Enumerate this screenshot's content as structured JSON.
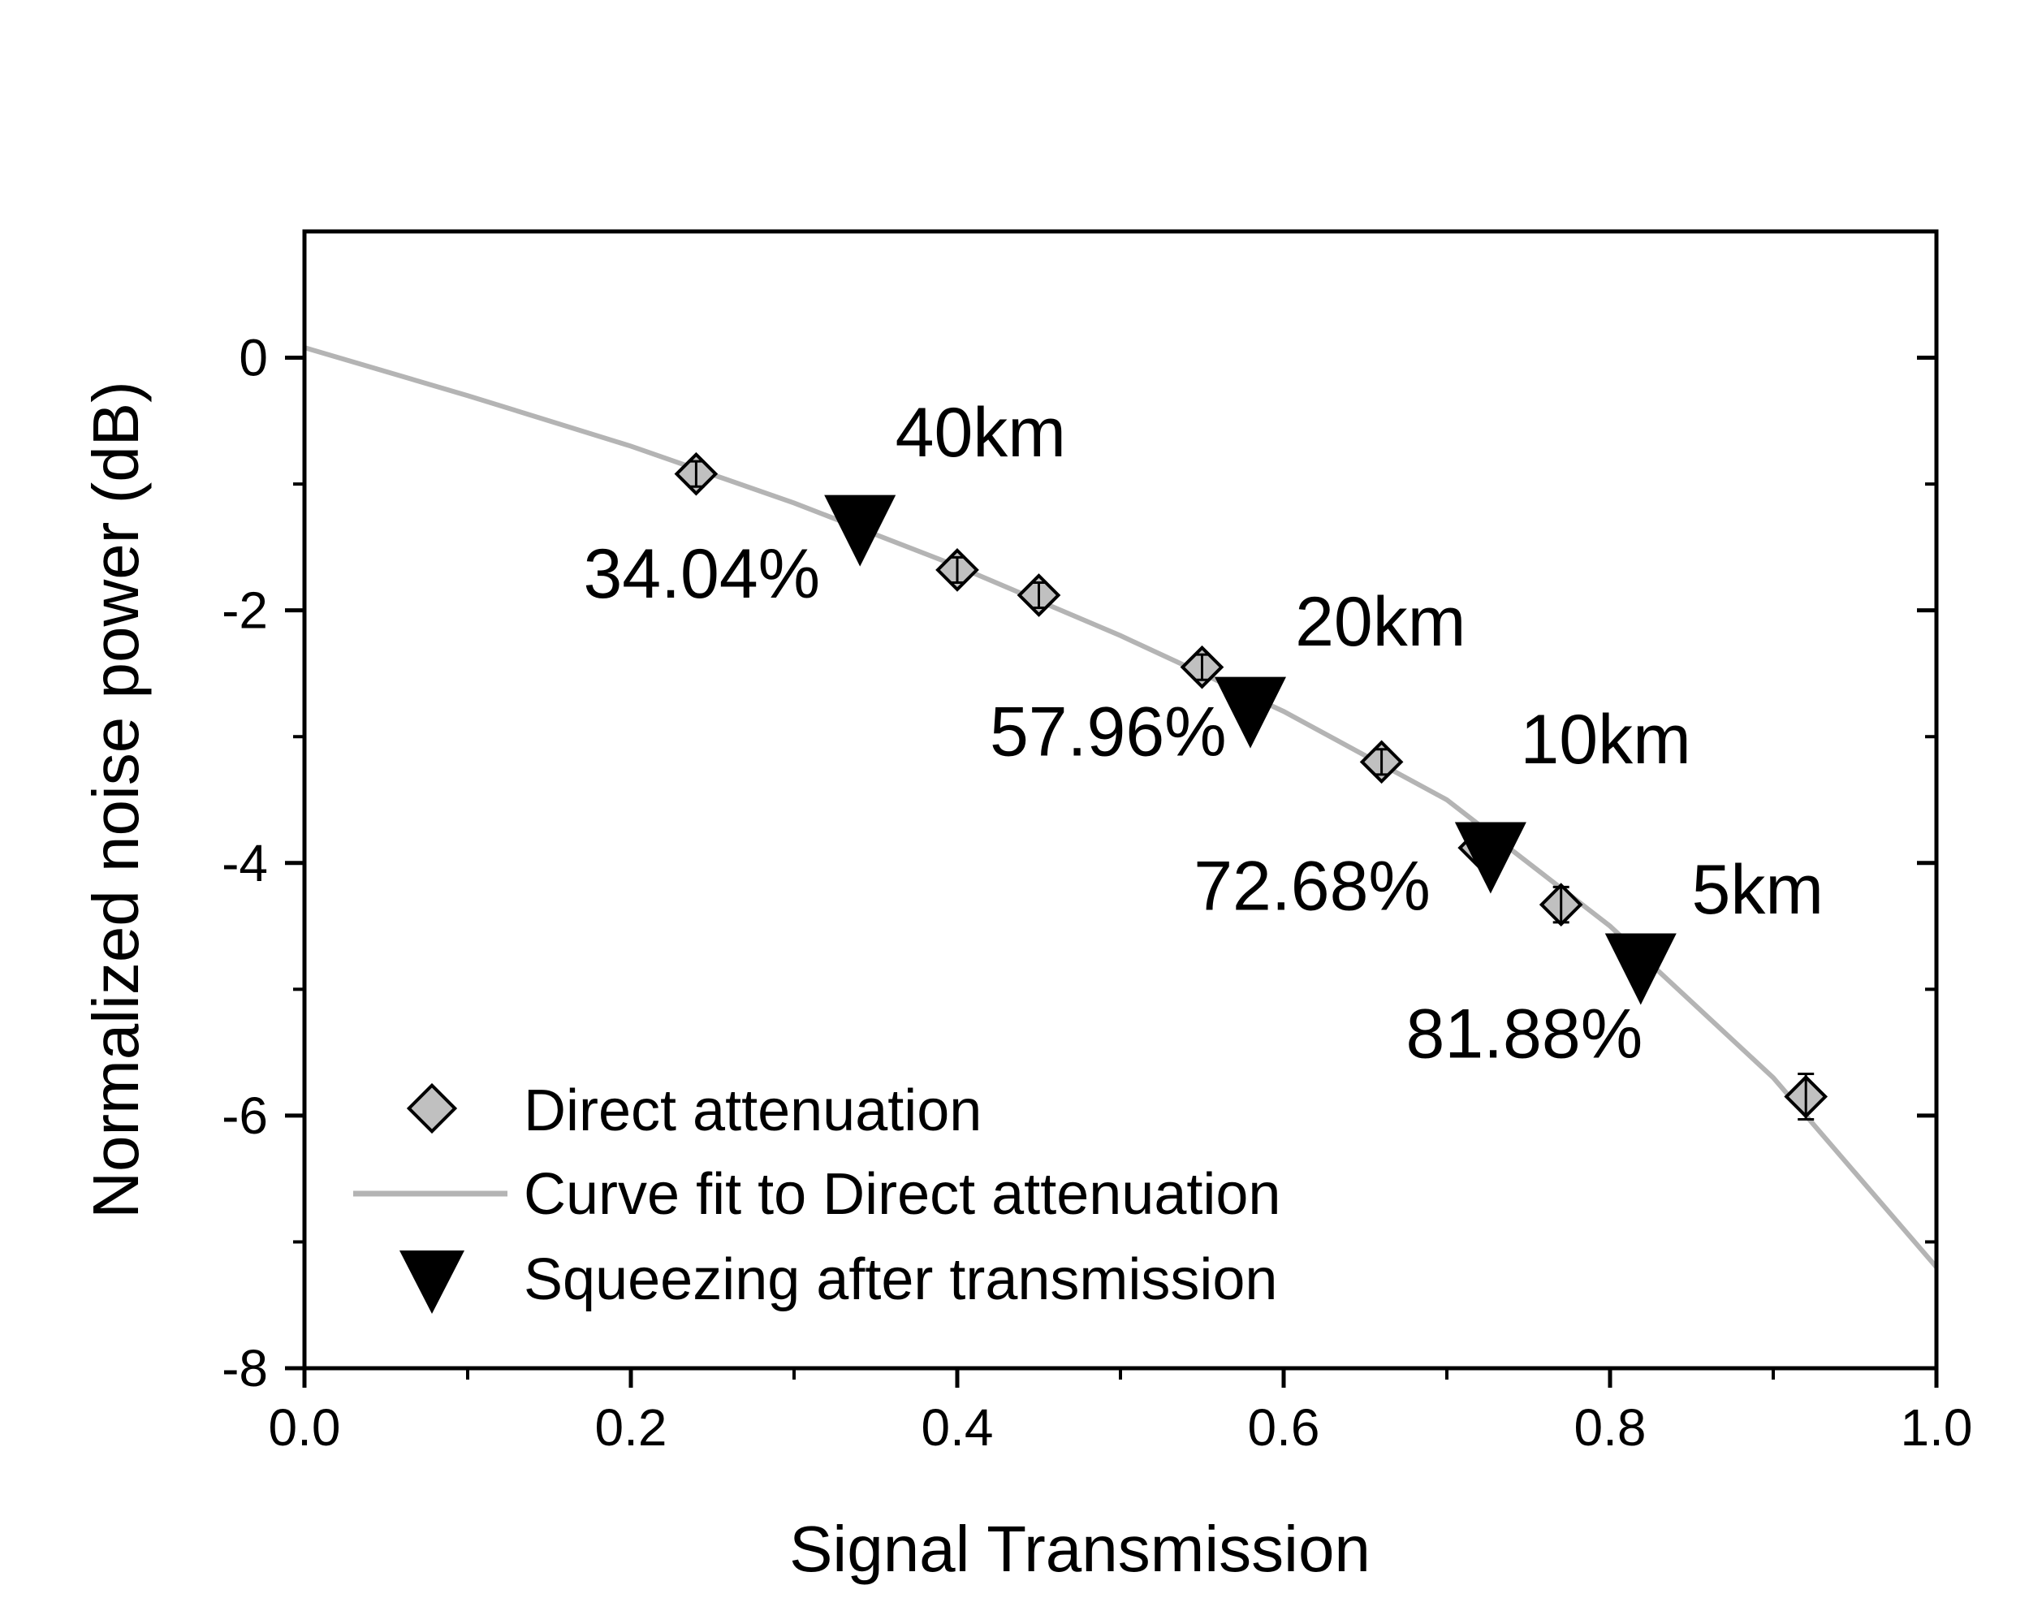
{
  "chart_data": {
    "type": "scatter",
    "title": "",
    "xlabel": "Signal Transmission",
    "ylabel": "Normalized noise power (dB)",
    "xlim": [
      0.0,
      1.0
    ],
    "ylim": [
      -8,
      1
    ],
    "x_ticks": [
      "0.0",
      "0.2",
      "0.4",
      "0.6",
      "0.8",
      "1.0"
    ],
    "x_tick_values": [
      0.0,
      0.2,
      0.4,
      0.6,
      0.8,
      1.0
    ],
    "y_ticks": [
      "0",
      "-2",
      "-4",
      "-6",
      "-8"
    ],
    "y_tick_values": [
      0,
      -2,
      -4,
      -6,
      -8
    ],
    "grid": false,
    "legend_position": "bottom-left",
    "colors": {
      "diamond_fill": "#c0c0c0",
      "diamond_stroke": "#000000",
      "curve": "#b4b4b4",
      "triangle": "#000000"
    },
    "series": [
      {
        "name": "Direct attenuation",
        "marker": "diamond",
        "points": [
          {
            "x": 0.24,
            "y": -0.92,
            "err": 0.1
          },
          {
            "x": 0.4,
            "y": -1.68,
            "err": 0.1
          },
          {
            "x": 0.45,
            "y": -1.88,
            "err": 0.1
          },
          {
            "x": 0.55,
            "y": -2.45,
            "err": 0.1
          },
          {
            "x": 0.66,
            "y": -3.2,
            "err": 0.1
          },
          {
            "x": 0.72,
            "y": -3.88,
            "err": 0.1
          },
          {
            "x": 0.77,
            "y": -4.33,
            "err": 0.14
          },
          {
            "x": 0.92,
            "y": -5.85,
            "err": 0.18
          }
        ]
      },
      {
        "name": "Curve fit to Direct attenuation",
        "marker": "line",
        "x": [
          0.0,
          0.1,
          0.2,
          0.3,
          0.4,
          0.5,
          0.6,
          0.7,
          0.8,
          0.9,
          1.0
        ],
        "y": [
          0.08,
          -0.3,
          -0.7,
          -1.15,
          -1.65,
          -2.2,
          -2.8,
          -3.5,
          -4.5,
          -5.7,
          -7.2
        ]
      },
      {
        "name": "Squeezing after transmission",
        "marker": "triangle-down",
        "points": [
          {
            "x": 0.3404,
            "y": -1.28
          },
          {
            "x": 0.5796,
            "y": -2.72
          },
          {
            "x": 0.7268,
            "y": -3.87
          },
          {
            "x": 0.8188,
            "y": -4.75
          }
        ]
      }
    ],
    "annotations": [
      {
        "text": "40km",
        "x": 0.362,
        "y": -0.78,
        "anchor": "start"
      },
      {
        "text": "34.04%",
        "x": 0.316,
        "y": -1.9,
        "anchor": "end"
      },
      {
        "text": "20km",
        "x": 0.607,
        "y": -2.28,
        "anchor": "start"
      },
      {
        "text": "57.96%",
        "x": 0.565,
        "y": -3.15,
        "anchor": "end"
      },
      {
        "text": "10km",
        "x": 0.745,
        "y": -3.21,
        "anchor": "start"
      },
      {
        "text": "72.68%",
        "x": 0.69,
        "y": -4.37,
        "anchor": "end"
      },
      {
        "text": "5km",
        "x": 0.85,
        "y": -4.4,
        "anchor": "start"
      },
      {
        "text": "81.88%",
        "x": 0.82,
        "y": -5.54,
        "anchor": "end"
      }
    ]
  }
}
